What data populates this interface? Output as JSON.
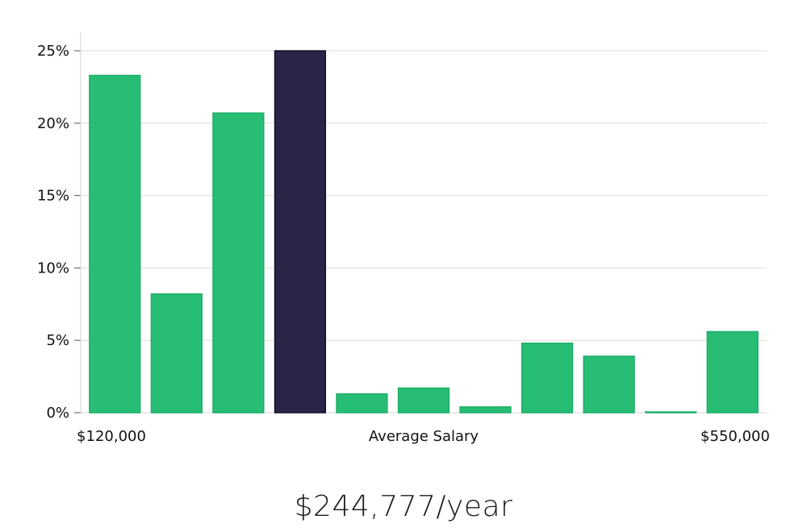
{
  "chart_data": {
    "type": "bar",
    "title": "",
    "xlabel": "Average Salary",
    "ylabel": "",
    "ylim": [
      0,
      25
    ],
    "yticks": [
      0,
      5,
      10,
      15,
      20,
      25
    ],
    "ytick_labels": [
      "0%",
      "5%",
      "10%",
      "15%",
      "20%",
      "25%"
    ],
    "x_min_label": "$120,000",
    "x_max_label": "$550,000",
    "grid": true,
    "values": [
      23.3,
      8.2,
      20.7,
      25.0,
      1.3,
      1.7,
      0.4,
      4.8,
      3.9,
      0.05,
      5.6
    ],
    "highlight_index": 3,
    "colors": {
      "bar": "#27bd74",
      "bar_edge": "#1fae68",
      "highlight": "#292546",
      "highlight_edge": "#14122b",
      "grid": "#dddddd",
      "axis": "#d6d6d6"
    }
  },
  "summary": {
    "salary_text": "$244,777/year"
  }
}
